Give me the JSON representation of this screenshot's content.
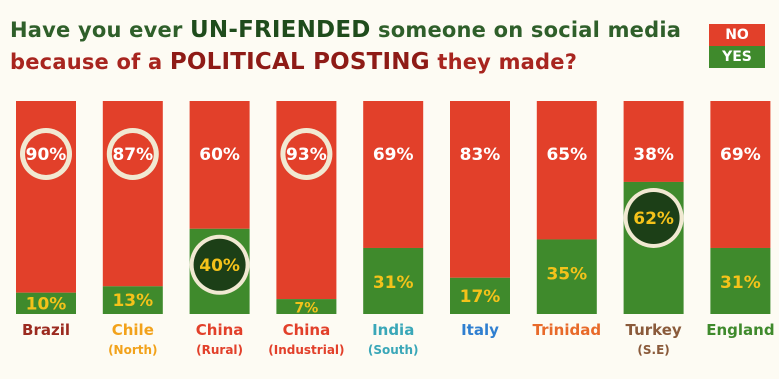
{
  "title": {
    "line1_pre": "Have you ever ",
    "line1_highlight": "UN-FRIENDED",
    "line1_post": " someone on social media",
    "line2_pre": "because of a ",
    "line2_highlight": "POLITICAL POSTING",
    "line2_post": " they made?"
  },
  "legend": {
    "no": "NO",
    "yes": "YES"
  },
  "colors": {
    "no": "#e2402a",
    "yes": "#3f8a2c",
    "circle_fill": "#1c3f17",
    "circle_ring": "#f1e9d2",
    "yes_label": "#f4c21a",
    "no_label": "#ffffff"
  },
  "chart_data": {
    "type": "bar",
    "stacked": true,
    "ylim": [
      0,
      100
    ],
    "categories": [
      "Brazil",
      "Chile",
      "China",
      "China",
      "India",
      "Italy",
      "Trinidad",
      "Turkey",
      "England"
    ],
    "sublabels": [
      "",
      "(North)",
      "(Rural)",
      "(Industrial)",
      "(South)",
      "",
      "",
      "(S.E)",
      ""
    ],
    "category_colors": [
      "#9b2a1f",
      "#f2a21b",
      "#e2402a",
      "#e2402a",
      "#3aa7b8",
      "#2f7fd0",
      "#e86a2a",
      "#8a5a3a",
      "#3f8a2c"
    ],
    "series": [
      {
        "name": "NO",
        "values": [
          90,
          87,
          60,
          93,
          69,
          83,
          65,
          38,
          69
        ]
      },
      {
        "name": "YES",
        "values": [
          10,
          13,
          40,
          7,
          31,
          17,
          35,
          62,
          31
        ]
      }
    ],
    "value_labels": {
      "NO": [
        "90%",
        "87%",
        "60%",
        "93%",
        "69%",
        "83%",
        "65%",
        "38%",
        "69%"
      ],
      "YES": [
        "10%",
        "13%",
        "40%",
        "7%",
        "31%",
        "17%",
        "35%",
        "62%",
        "31%"
      ]
    },
    "highlighted": [
      "NO",
      "NO",
      "YES",
      "NO",
      "",
      "",
      "",
      "YES",
      ""
    ]
  }
}
